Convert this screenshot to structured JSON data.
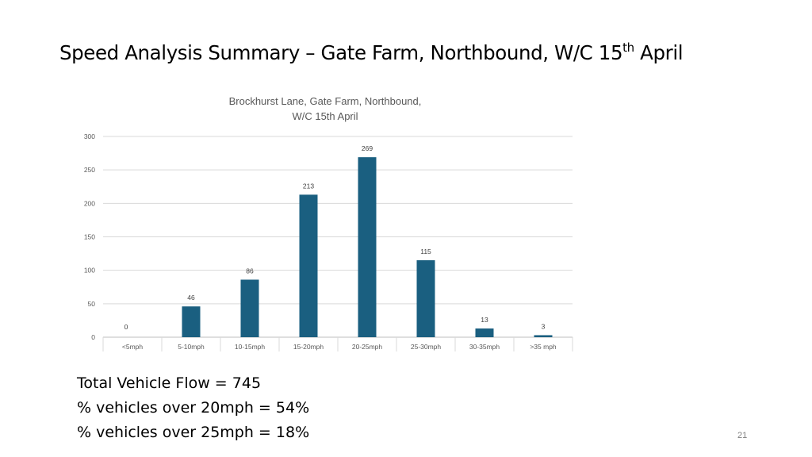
{
  "slide": {
    "title_main": "Speed Analysis Summary – Gate Farm, Northbound, W/C 15",
    "title_sup": "th",
    "title_end": " April",
    "summary": [
      "Total Vehicle Flow = 745",
      "% vehicles over 20mph = 54%",
      "% vehicles over 25mph = 18%"
    ],
    "slide_number": "21"
  },
  "chart_data": {
    "type": "bar",
    "title_lines": [
      "Brockhurst Lane, Gate Farm, Northbound,",
      "W/C 15th April"
    ],
    "categories": [
      "<5mph",
      "5-10mph",
      "10-15mph",
      "15-20mph",
      "20-25mph",
      "25-30mph",
      "30-35mph",
      ">35 mph"
    ],
    "values": [
      0,
      46,
      86,
      213,
      269,
      115,
      13,
      3
    ],
    "ylim": [
      0,
      300
    ],
    "yticks": [
      0,
      50,
      100,
      150,
      200,
      250,
      300
    ],
    "grid": true,
    "legend": "none",
    "bar_color": "#1a5f80"
  }
}
